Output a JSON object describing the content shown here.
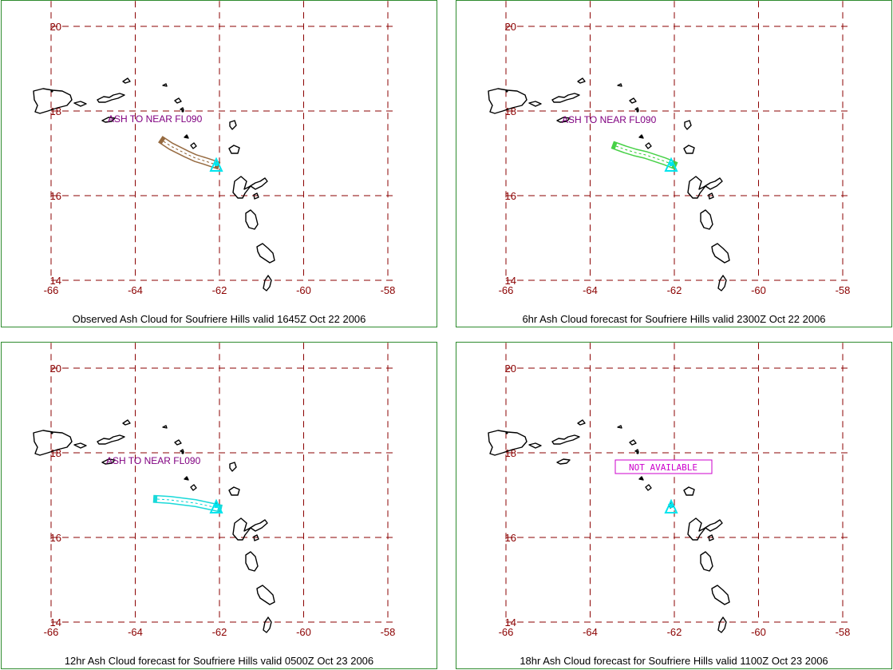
{
  "map": {
    "x_ticks": [
      "-66",
      "-64",
      "-62",
      "-60",
      "-58"
    ],
    "y_ticks": [
      "20",
      "18",
      "16",
      "14"
    ],
    "lon_range": [
      -66,
      -58
    ],
    "lat_range": [
      14,
      20
    ],
    "grid": "dashed",
    "grid_color": "#8b0000",
    "border_color": "#2e8b2e",
    "volcano_color": "#00e5ee"
  },
  "panels": [
    {
      "caption": "Observed Ash Cloud for Soufriere  Hills valid 1645Z Oct 22 2006",
      "label": "ASH TO NEAR FL090",
      "ash_color": "#8b5a2b",
      "ash_shown": true,
      "not_available": ""
    },
    {
      "caption": "6hr Ash Cloud forecast for Soufriere  Hills valid 2300Z Oct 22 2006",
      "label": "ASH TO NEAR FL090",
      "ash_color": "#33cc33",
      "ash_shown": true,
      "not_available": ""
    },
    {
      "caption": "12hr Ash Cloud forecast for Soufriere  Hills valid 0500Z Oct 23 2006",
      "label": "ASH TO NEAR FL090",
      "ash_color": "#00d5d5",
      "ash_shown": true,
      "not_available": ""
    },
    {
      "caption": "18hr Ash Cloud forecast for Soufriere  Hills valid 1100Z Oct 23 2006",
      "label": "",
      "ash_color": "",
      "ash_shown": false,
      "not_available": "NOT AVAILABLE"
    }
  ]
}
